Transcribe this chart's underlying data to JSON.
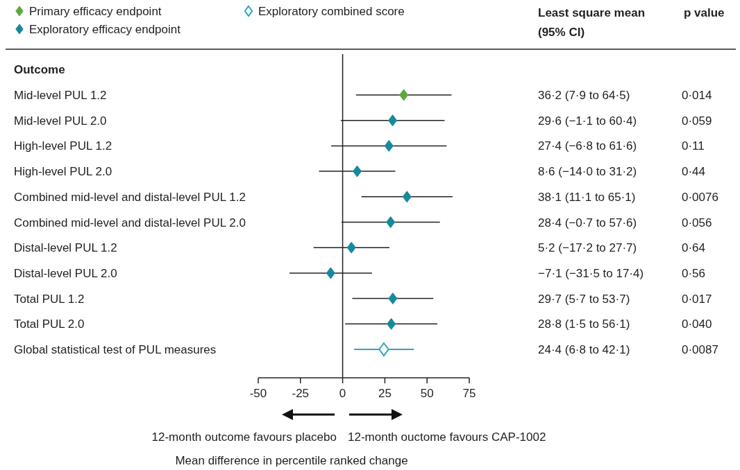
{
  "chart_data": {
    "type": "scatter",
    "orientation": "horizontal",
    "ylabel": "Outcome",
    "xlabel": "Mean difference in percentile ranked change",
    "categories": [
      "Mid-level PUL 1.2",
      "Mid-level PUL 2.0",
      "High-level PUL 1.2",
      "High-level PUL 2.0",
      "Combined mid-level and distal-level PUL 1.2",
      "Combined mid-level and distal-level PUL 2.0",
      "Distal-level PUL 1.2",
      "Distal-level PUL 2.0",
      "Total PUL 1.2",
      "Total PUL 2.0",
      "Global statistical test of PUL measures"
    ],
    "series": [
      {
        "name": "Primary efficacy endpoint",
        "color": "#5ea83c",
        "values": [
          36.2,
          null,
          null,
          null,
          null,
          null,
          null,
          null,
          null,
          null,
          null
        ],
        "errors": [
          [
            7.9,
            64.5
          ],
          null,
          null,
          null,
          null,
          null,
          null,
          null,
          null,
          null,
          null
        ]
      },
      {
        "name": "Exploratory efficacy endpoint",
        "color": "#168a9c",
        "values": [
          null,
          29.6,
          27.4,
          8.6,
          38.1,
          28.4,
          5.2,
          -7.1,
          29.7,
          28.8,
          null
        ],
        "errors": [
          null,
          [
            -1.1,
            60.4
          ],
          [
            -6.8,
            61.6
          ],
          [
            -14.0,
            31.2
          ],
          [
            11.1,
            65.1
          ],
          [
            -0.7,
            57.6
          ],
          [
            -17.2,
            27.7
          ],
          [
            -31.5,
            17.4
          ],
          [
            5.7,
            53.7
          ],
          [
            1.5,
            56.1
          ],
          null
        ]
      },
      {
        "name": "Exploratory combined score",
        "color": "#2aa8c0",
        "values": [
          null,
          null,
          null,
          null,
          null,
          null,
          null,
          null,
          null,
          null,
          24.4
        ],
        "errors": [
          null,
          null,
          null,
          null,
          null,
          null,
          null,
          null,
          null,
          null,
          [
            6.8,
            42.1
          ]
        ]
      }
    ],
    "marker": "diamond",
    "xlim": [
      -50,
      75
    ],
    "xticks": [
      -50,
      -25,
      0,
      25,
      50,
      75
    ],
    "ref_lines": [
      {
        "axis": "x",
        "value": 0
      }
    ],
    "legend": "top left",
    "grid": false,
    "annotations": [
      "Least square mean (95% CI)",
      "p value",
      "12-month outcome favours placebo",
      "12-month ouctome favours CAP-1002",
      "36·2 (7·9 to 64·5)",
      "29·6 (−1·1 to 60·4)",
      "27·4 (−6·8 to 61·6)",
      "8·6 (−14·0 to 31·2)",
      "38·1 (11·1 to 65·1)",
      "28·4 (−0·7 to 57·6)",
      "5·2 (−17·2 to 27·7)",
      "−7·1 (−31·5 to 17·4)",
      "29·7 (5·7 to 53·7)",
      "28·8 (1·5 to 56·1)",
      "24·4 (6·8 to 42·1)",
      "0·014",
      "0·059",
      "0·11",
      "0·44",
      "0·0076",
      "0·056",
      "0·64",
      "0·56",
      "0·017",
      "0·040",
      "0·0087"
    ]
  }
}
